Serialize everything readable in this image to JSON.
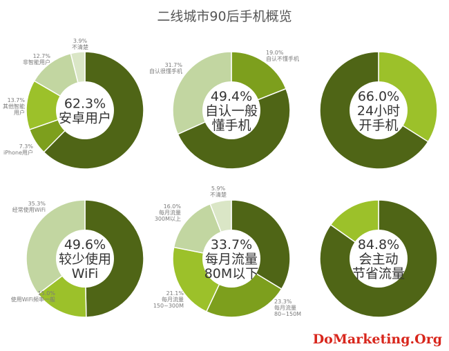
{
  "page": {
    "title": "二线城市90后手机概览",
    "watermark": "DoMarketing.Org"
  },
  "colors": {
    "dark": "#4f6516",
    "mid": "#7d9f1d",
    "bright": "#9cc12a",
    "light": "#c2d6a1",
    "pale": "#dae6c6",
    "center": "#ffffff"
  },
  "chart_data": [
    {
      "type": "pie",
      "center_lines": [
        "62.3%",
        "安卓用户"
      ],
      "slices": [
        {
          "value": 62.3,
          "label": [],
          "color": "dark"
        },
        {
          "value": 7.3,
          "label": [
            "7.3%",
            "iPhone用户"
          ],
          "color": "mid"
        },
        {
          "value": 13.7,
          "label": [
            "13.7%",
            "其他智能",
            "用户"
          ],
          "color": "bright"
        },
        {
          "value": 12.7,
          "label": [
            "12.7%",
            "非智能用户"
          ],
          "color": "light"
        },
        {
          "value": 3.9,
          "label": [
            "3.9%",
            "不清楚"
          ],
          "color": "pale"
        }
      ]
    },
    {
      "type": "pie",
      "center_lines": [
        "49.4%",
        "自认一般",
        "懂手机"
      ],
      "slices": [
        {
          "value": 19.0,
          "label": [
            "19.0%",
            "自认不懂手机"
          ],
          "color": "mid"
        },
        {
          "value": 49.4,
          "label": [],
          "color": "dark"
        },
        {
          "value": 31.7,
          "label": [
            "31.7%",
            "自认很懂手机"
          ],
          "color": "light"
        }
      ]
    },
    {
      "type": "pie",
      "center_lines": [
        "66.0%",
        "24小时",
        "开手机"
      ],
      "slices": [
        {
          "value": 34.0,
          "label": [],
          "color": "bright"
        },
        {
          "value": 66.0,
          "label": [],
          "color": "dark"
        }
      ]
    },
    {
      "type": "pie",
      "center_lines": [
        "49.6%",
        "较少使用",
        "WiFi"
      ],
      "slices": [
        {
          "value": 49.6,
          "label": [],
          "color": "dark"
        },
        {
          "value": 15.0,
          "label": [
            "15.0%",
            "使用WiFi频率一般"
          ],
          "color": "bright"
        },
        {
          "value": 35.3,
          "label": [
            "35.3%",
            "经常使用WiFi"
          ],
          "color": "light"
        }
      ]
    },
    {
      "type": "pie",
      "center_lines": [
        "33.7%",
        "每月流量",
        "80M以下"
      ],
      "slices": [
        {
          "value": 33.7,
          "label": [],
          "color": "dark"
        },
        {
          "value": 23.3,
          "label": [
            "23.3%",
            "每月流量",
            "80~150M"
          ],
          "color": "mid"
        },
        {
          "value": 21.1,
          "label": [
            "21.1%",
            "每月流量",
            "150~300M"
          ],
          "color": "bright"
        },
        {
          "value": 16.0,
          "label": [
            "16.0%",
            "每月流量",
            "300M以上"
          ],
          "color": "light"
        },
        {
          "value": 5.9,
          "label": [
            "5.9%",
            "不清楚"
          ],
          "color": "pale"
        }
      ]
    },
    {
      "type": "pie",
      "center_lines": [
        "84.8%",
        "会主动",
        "节省流量"
      ],
      "slices": [
        {
          "value": 84.8,
          "label": [],
          "color": "dark"
        },
        {
          "value": 15.2,
          "label": [],
          "color": "bright"
        }
      ]
    }
  ]
}
